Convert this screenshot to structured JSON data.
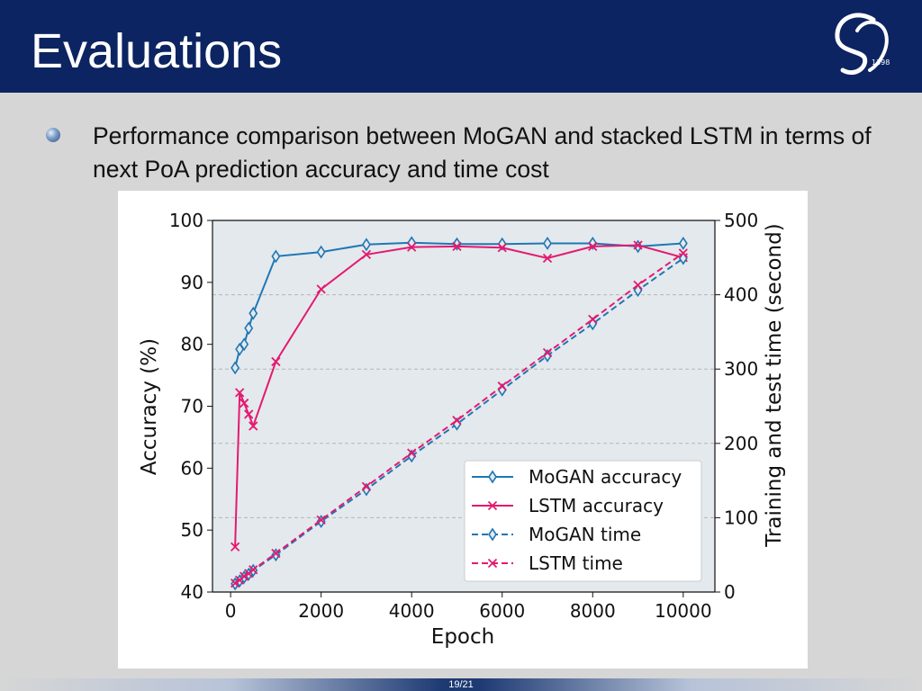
{
  "slide": {
    "title": "Evaluations",
    "logo_text": "1398",
    "bullet_text": "Performance comparison between MoGAN and stacked LSTM in terms of next PoA prediction accuracy and time cost",
    "page_number": "19/21"
  },
  "colors": {
    "header": "#0c2461",
    "mogan": "#1f77b4",
    "lstm": "#e31a6f",
    "plot_bg": "#e4e9ed"
  },
  "chart_data": {
    "type": "line",
    "title": "",
    "xlabel": "Epoch",
    "ylabel": "Accuracy (%)",
    "y2label": "Training and test time (second)",
    "xlim": [
      -400,
      10700
    ],
    "ylim": [
      40,
      100
    ],
    "y2lim": [
      0,
      500
    ],
    "xticks": [
      0,
      2000,
      4000,
      6000,
      8000,
      10000
    ],
    "yticks": [
      40,
      50,
      60,
      70,
      80,
      90,
      100
    ],
    "y2ticks": [
      0,
      100,
      200,
      300,
      400,
      500
    ],
    "y2_grid": [
      100,
      200,
      300,
      400
    ],
    "legend_position": "lower-right",
    "series": [
      {
        "name": "MoGAN accuracy",
        "axis": "left",
        "style": "solid",
        "marker": "diamond",
        "color": "#1f77b4",
        "x": [
          100,
          200,
          300,
          400,
          500,
          1000,
          2000,
          3000,
          4000,
          5000,
          6000,
          7000,
          8000,
          9000,
          10000
        ],
        "y": [
          76.2,
          79.2,
          80.0,
          82.6,
          85.0,
          94.2,
          94.9,
          96.1,
          96.4,
          96.2,
          96.2,
          96.3,
          96.3,
          95.8,
          96.3
        ]
      },
      {
        "name": "LSTM accuracy",
        "axis": "left",
        "style": "solid",
        "marker": "x",
        "color": "#e31a6f",
        "x": [
          100,
          200,
          300,
          400,
          500,
          1000,
          2000,
          3000,
          4000,
          5000,
          6000,
          7000,
          8000,
          9000,
          10000
        ],
        "y": [
          47.3,
          72.2,
          70.5,
          68.7,
          66.8,
          77.2,
          88.9,
          94.5,
          95.7,
          95.8,
          95.6,
          93.9,
          95.8,
          96.0,
          94.0
        ]
      },
      {
        "name": "MoGAN time",
        "axis": "right",
        "style": "dashed",
        "marker": "diamond",
        "color": "#1f77b4",
        "x": [
          100,
          200,
          300,
          400,
          500,
          1000,
          2000,
          3000,
          4000,
          5000,
          6000,
          7000,
          8000,
          9000,
          10000
        ],
        "y": [
          11,
          15,
          20,
          24,
          29,
          50,
          95,
          138,
          183,
          226,
          272,
          318,
          361,
          406,
          449
        ]
      },
      {
        "name": "LSTM time",
        "axis": "right",
        "style": "dashed",
        "marker": "x",
        "color": "#e31a6f",
        "x": [
          100,
          200,
          300,
          400,
          500,
          1000,
          2000,
          3000,
          4000,
          5000,
          6000,
          7000,
          8000,
          9000,
          10000
        ],
        "y": [
          12,
          16,
          21,
          25,
          30,
          52,
          97,
          142,
          187,
          231,
          277,
          322,
          367,
          413,
          456
        ]
      }
    ]
  }
}
